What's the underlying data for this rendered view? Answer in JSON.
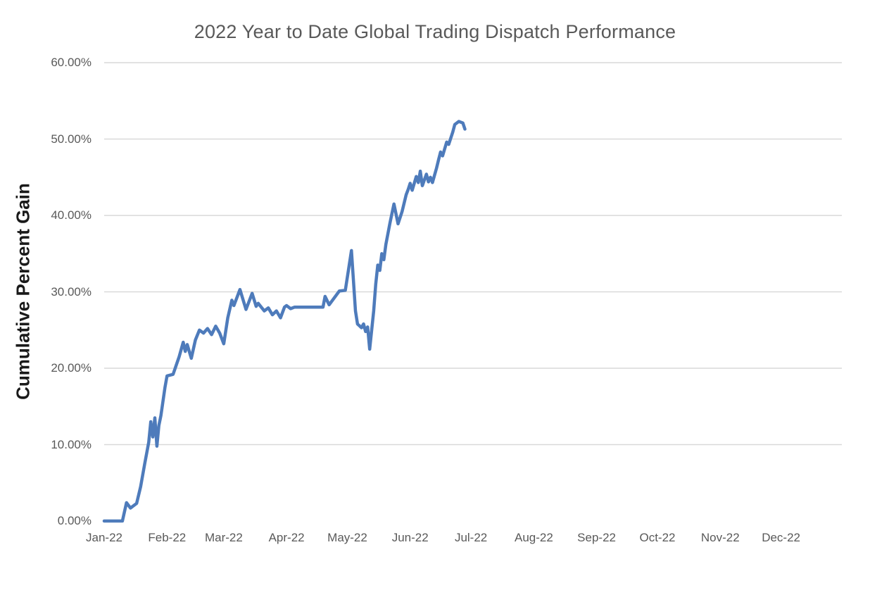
{
  "title": "2022 Year to Date Global Trading Dispatch Performance",
  "colors": {
    "line": "#4e7bbb",
    "gridline": "#d9d9d9",
    "tick_text": "#595959",
    "title_text": "#595959",
    "axis_title_text": "#1a1a1a"
  },
  "chart_data": {
    "type": "line",
    "title": "2022 Year to Date Global Trading Dispatch Performance",
    "xlabel": "",
    "ylabel": "Cumulative Percent Gain",
    "ylim": [
      0,
      60
    ],
    "grid": "horizontal",
    "legend": "none",
    "y_tick_values": [
      0,
      10,
      20,
      30,
      40,
      50,
      60
    ],
    "y_tick_labels": [
      "0.00%",
      "10.00%",
      "20.00%",
      "30.00%",
      "40.00%",
      "50.00%",
      "60.00%"
    ],
    "gridline_values": [
      10,
      20,
      30,
      40,
      50,
      60
    ],
    "x_ticks": [
      {
        "label": "Jan-22",
        "date": "2022-01-01"
      },
      {
        "label": "Feb-22",
        "date": "2022-02-01"
      },
      {
        "label": "Mar-22",
        "date": "2022-03-01"
      },
      {
        "label": "Apr-22",
        "date": "2022-04-01"
      },
      {
        "label": "May-22",
        "date": "2022-05-01"
      },
      {
        "label": "Jun-22",
        "date": "2022-06-01"
      },
      {
        "label": "Jul-22",
        "date": "2022-07-01"
      },
      {
        "label": "Aug-22",
        "date": "2022-08-01"
      },
      {
        "label": "Sep-22",
        "date": "2022-09-01"
      },
      {
        "label": "Oct-22",
        "date": "2022-10-01"
      },
      {
        "label": "Nov-22",
        "date": "2022-11-01"
      },
      {
        "label": "Dec-22",
        "date": "2022-12-01"
      }
    ],
    "series": [
      {
        "name": "Cumulative Percent Gain",
        "unit": "%",
        "points": [
          [
            "2022-01-01",
            0.0
          ],
          [
            "2022-01-10",
            0.0
          ],
          [
            "2022-01-12",
            2.4
          ],
          [
            "2022-01-14",
            1.7
          ],
          [
            "2022-01-17",
            2.3
          ],
          [
            "2022-01-19",
            4.5
          ],
          [
            "2022-01-21",
            7.5
          ],
          [
            "2022-01-23",
            10.3
          ],
          [
            "2022-01-24",
            13.0
          ],
          [
            "2022-01-25",
            11.0
          ],
          [
            "2022-01-26",
            13.5
          ],
          [
            "2022-01-27",
            9.8
          ],
          [
            "2022-01-28",
            12.5
          ],
          [
            "2022-01-29",
            13.8
          ],
          [
            "2022-01-31",
            17.5
          ],
          [
            "2022-02-01",
            19.0
          ],
          [
            "2022-02-04",
            19.2
          ],
          [
            "2022-02-07",
            21.5
          ],
          [
            "2022-02-09",
            23.4
          ],
          [
            "2022-02-10",
            22.2
          ],
          [
            "2022-02-11",
            23.1
          ],
          [
            "2022-02-13",
            21.3
          ],
          [
            "2022-02-15",
            23.7
          ],
          [
            "2022-02-17",
            25.0
          ],
          [
            "2022-02-19",
            24.6
          ],
          [
            "2022-02-21",
            25.2
          ],
          [
            "2022-02-23",
            24.4
          ],
          [
            "2022-02-25",
            25.5
          ],
          [
            "2022-02-27",
            24.6
          ],
          [
            "2022-03-01",
            23.2
          ],
          [
            "2022-03-03",
            26.6
          ],
          [
            "2022-03-05",
            28.9
          ],
          [
            "2022-03-06",
            28.2
          ],
          [
            "2022-03-09",
            30.3
          ],
          [
            "2022-03-12",
            27.7
          ],
          [
            "2022-03-15",
            29.8
          ],
          [
            "2022-03-17",
            28.1
          ],
          [
            "2022-03-18",
            28.5
          ],
          [
            "2022-03-21",
            27.5
          ],
          [
            "2022-03-23",
            27.9
          ],
          [
            "2022-03-25",
            27.0
          ],
          [
            "2022-03-27",
            27.5
          ],
          [
            "2022-03-29",
            26.6
          ],
          [
            "2022-03-31",
            28.0
          ],
          [
            "2022-04-01",
            28.2
          ],
          [
            "2022-04-03",
            27.8
          ],
          [
            "2022-04-05",
            28.0
          ],
          [
            "2022-04-19",
            28.0
          ],
          [
            "2022-04-20",
            29.4
          ],
          [
            "2022-04-22",
            28.3
          ],
          [
            "2022-04-27",
            30.1
          ],
          [
            "2022-04-30",
            30.2
          ],
          [
            "2022-05-03",
            35.4
          ],
          [
            "2022-05-05",
            27.5
          ],
          [
            "2022-05-06",
            25.8
          ],
          [
            "2022-05-08",
            25.3
          ],
          [
            "2022-05-09",
            25.8
          ],
          [
            "2022-05-10",
            24.8
          ],
          [
            "2022-05-11",
            25.4
          ],
          [
            "2022-05-12",
            22.5
          ],
          [
            "2022-05-14",
            27.5
          ],
          [
            "2022-05-15",
            31.0
          ],
          [
            "2022-05-16",
            33.5
          ],
          [
            "2022-05-17",
            32.8
          ],
          [
            "2022-05-18",
            35.0
          ],
          [
            "2022-05-19",
            34.2
          ],
          [
            "2022-05-20",
            36.2
          ],
          [
            "2022-05-22",
            39.0
          ],
          [
            "2022-05-24",
            41.5
          ],
          [
            "2022-05-26",
            38.9
          ],
          [
            "2022-05-28",
            40.5
          ],
          [
            "2022-05-30",
            42.7
          ],
          [
            "2022-05-31",
            43.4
          ],
          [
            "2022-06-01",
            44.2
          ],
          [
            "2022-06-02",
            43.3
          ],
          [
            "2022-06-04",
            45.1
          ],
          [
            "2022-06-05",
            44.3
          ],
          [
            "2022-06-06",
            45.8
          ],
          [
            "2022-06-07",
            43.9
          ],
          [
            "2022-06-09",
            45.4
          ],
          [
            "2022-06-10",
            44.4
          ],
          [
            "2022-06-11",
            45.0
          ],
          [
            "2022-06-12",
            44.3
          ],
          [
            "2022-06-14",
            46.2
          ],
          [
            "2022-06-15",
            47.3
          ],
          [
            "2022-06-16",
            48.3
          ],
          [
            "2022-06-17",
            47.8
          ],
          [
            "2022-06-19",
            49.6
          ],
          [
            "2022-06-20",
            49.3
          ],
          [
            "2022-06-22",
            50.9
          ],
          [
            "2022-06-23",
            51.9
          ],
          [
            "2022-06-25",
            52.3
          ],
          [
            "2022-06-27",
            52.1
          ],
          [
            "2022-06-28",
            51.3
          ]
        ]
      }
    ]
  }
}
